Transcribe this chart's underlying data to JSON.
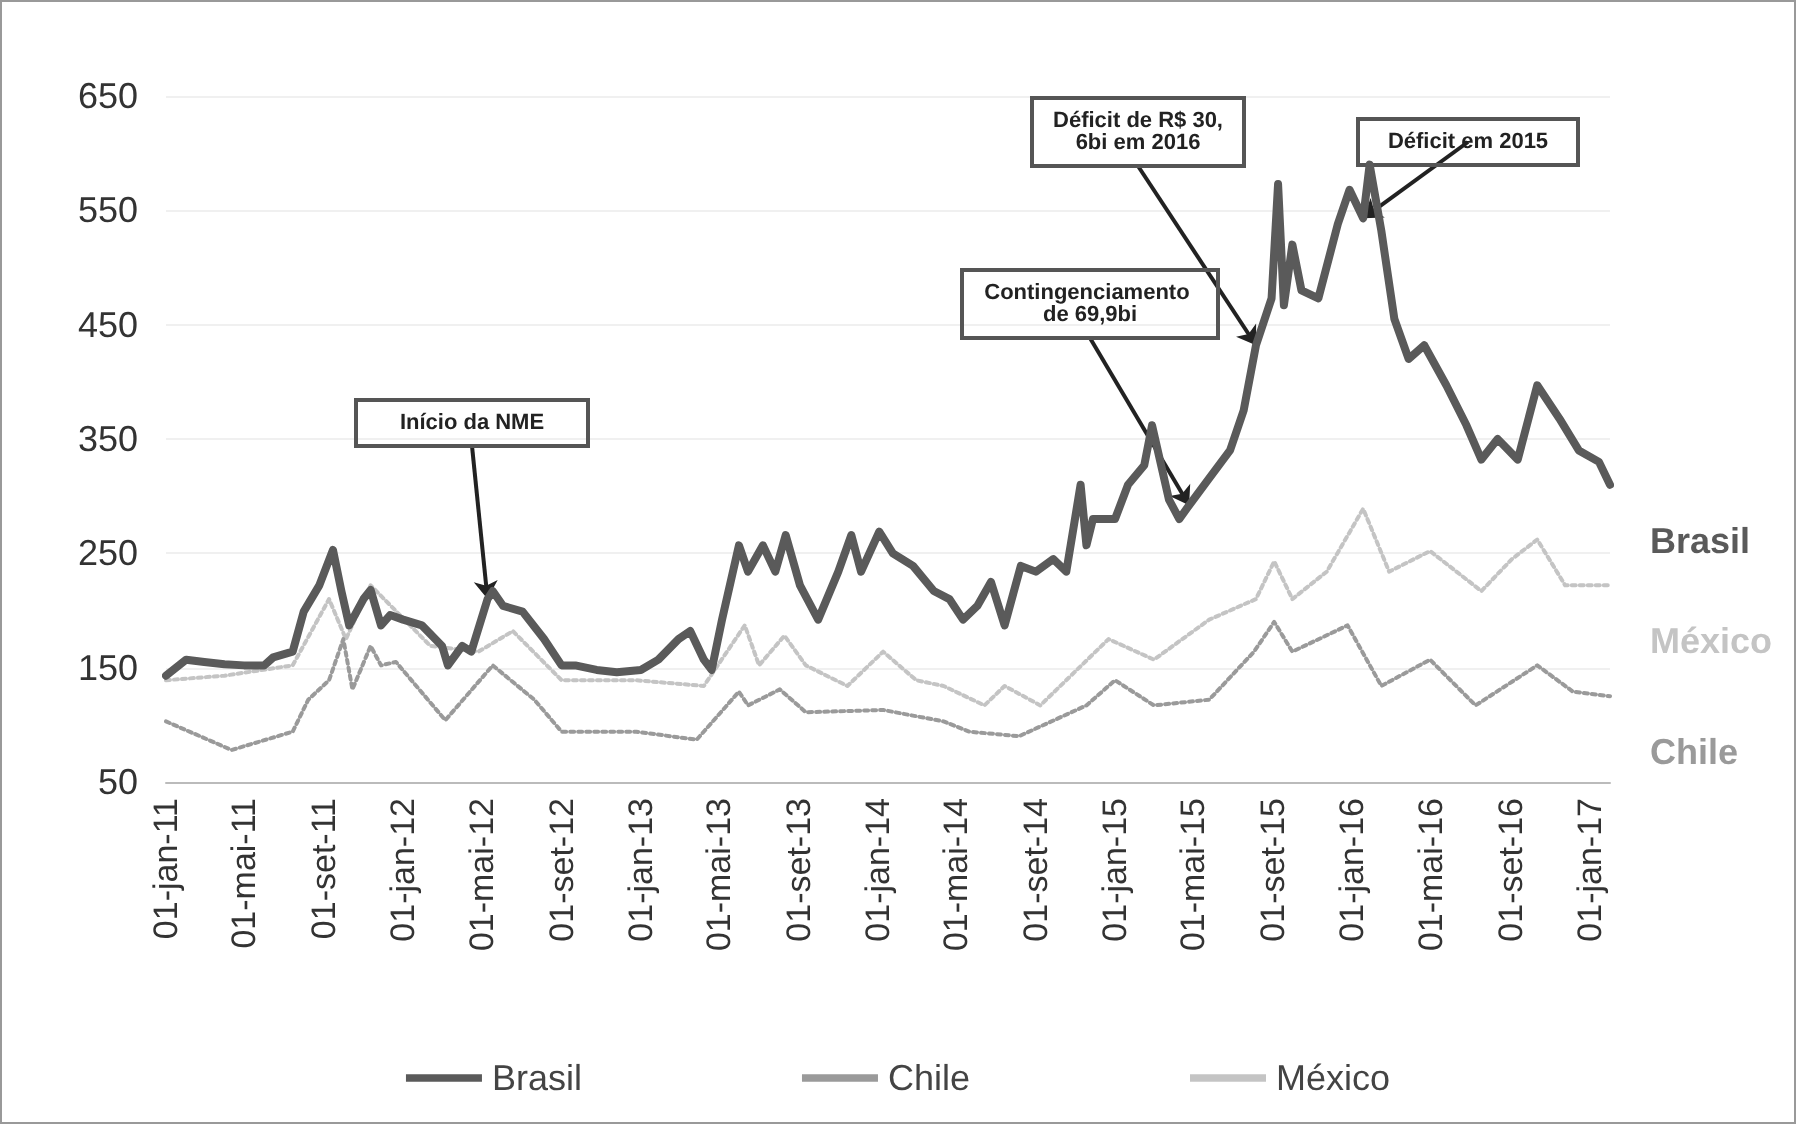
{
  "chart_data": {
    "type": "line",
    "ylim": [
      50,
      650
    ],
    "yticks": [
      50,
      150,
      250,
      350,
      450,
      550,
      650
    ],
    "xlim": [
      "2011-01-01",
      "2017-02-01"
    ],
    "xticks": [
      {
        "value": "2011-01-01",
        "label": "01-jan-11"
      },
      {
        "value": "2011-05-01",
        "label": "01-mai-11"
      },
      {
        "value": "2011-09-01",
        "label": "01-set-11"
      },
      {
        "value": "2012-01-01",
        "label": "01-jan-12"
      },
      {
        "value": "2012-05-01",
        "label": "01-mai-12"
      },
      {
        "value": "2012-09-01",
        "label": "01-set-12"
      },
      {
        "value": "2013-01-01",
        "label": "01-jan-13"
      },
      {
        "value": "2013-05-01",
        "label": "01-mai-13"
      },
      {
        "value": "2013-09-01",
        "label": "01-set-13"
      },
      {
        "value": "2014-01-01",
        "label": "01-jan-14"
      },
      {
        "value": "2014-05-01",
        "label": "01-mai-14"
      },
      {
        "value": "2014-09-01",
        "label": "01-set-14"
      },
      {
        "value": "2015-01-01",
        "label": "01-jan-15"
      },
      {
        "value": "2015-05-01",
        "label": "01-mai-15"
      },
      {
        "value": "2015-09-01",
        "label": "01-set-15"
      },
      {
        "value": "2016-01-01",
        "label": "01-jan-16"
      },
      {
        "value": "2016-05-01",
        "label": "01-mai-16"
      },
      {
        "value": "2016-09-01",
        "label": "01-set-16"
      },
      {
        "value": "2017-01-01",
        "label": "01-jan-17"
      }
    ],
    "grid": "y",
    "legend": "bottom",
    "marker": "none",
    "series": [
      {
        "name": "Brasil",
        "color": "#5a5a5a",
        "line_style": "solid",
        "x": [
          "2011-01-01",
          "2011-02-01",
          "2011-03-01",
          "2011-04-01",
          "2011-05-01",
          "2011-06-01",
          "2011-06-15",
          "2011-07-15",
          "2011-08-01",
          "2011-08-25",
          "2011-09-15",
          "2011-09-28",
          "2011-10-10",
          "2011-11-01",
          "2011-11-12",
          "2011-11-28",
          "2011-12-12",
          "2012-01-01",
          "2012-01-30",
          "2012-03-01",
          "2012-03-10",
          "2012-04-01",
          "2012-04-15",
          "2012-05-10",
          "2012-05-18",
          "2012-06-03",
          "2012-07-03",
          "2012-08-05",
          "2012-09-01",
          "2012-09-22",
          "2012-10-25",
          "2012-11-25",
          "2013-01-01",
          "2013-01-28",
          "2013-02-28",
          "2013-03-18",
          "2013-04-08",
          "2013-04-20",
          "2013-05-06",
          "2013-06-01",
          "2013-06-15",
          "2013-07-08",
          "2013-07-27",
          "2013-08-12",
          "2013-09-03",
          "2013-10-01",
          "2013-11-01",
          "2013-11-21",
          "2013-12-06",
          "2014-01-03",
          "2014-01-24",
          "2014-02-24",
          "2014-03-28",
          "2014-04-21",
          "2014-05-12",
          "2014-06-03",
          "2014-06-24",
          "2014-07-15",
          "2014-08-09",
          "2014-09-01",
          "2014-09-28",
          "2014-10-18",
          "2014-11-09",
          "2014-11-18",
          "2014-11-28",
          "2015-01-01",
          "2015-01-21",
          "2015-02-15",
          "2015-02-27",
          "2015-03-25",
          "2015-04-10",
          "2015-04-25",
          "2015-05-25",
          "2015-06-27",
          "2015-07-18",
          "2015-08-06",
          "2015-08-30",
          "2015-09-09",
          "2015-09-18",
          "2015-10-01",
          "2015-10-15",
          "2015-11-10",
          "2015-12-10",
          "2015-12-28",
          "2016-01-18",
          "2016-01-28",
          "2016-02-15",
          "2016-03-06",
          "2016-03-28",
          "2016-04-21",
          "2016-05-25",
          "2016-06-25",
          "2016-07-18",
          "2016-08-12",
          "2016-09-12",
          "2016-10-12",
          "2016-11-15",
          "2016-12-15",
          "2017-01-15",
          "2017-02-01"
        ],
        "values": [
          143,
          157,
          155,
          153,
          152,
          152,
          159,
          164,
          199,
          222,
          253,
          217,
          187,
          210,
          218,
          187,
          196,
          192,
          187,
          169,
          152,
          169,
          164,
          210,
          217,
          204,
          199,
          175,
          152,
          152,
          148,
          146,
          148,
          157,
          175,
          182,
          157,
          148,
          192,
          257,
          234,
          257,
          234,
          266,
          222,
          192,
          234,
          266,
          234,
          269,
          250,
          239,
          217,
          210,
          192,
          204,
          225,
          187,
          239,
          234,
          245,
          234,
          310,
          257,
          280,
          280,
          310,
          327,
          362,
          297,
          280,
          292,
          315,
          340,
          375,
          432,
          473,
          573,
          467,
          520,
          480,
          473,
          538,
          568,
          543,
          590,
          532,
          455,
          420,
          432,
          397,
          362,
          332,
          350,
          332,
          397,
          368,
          340,
          330,
          310
        ]
      },
      {
        "name": "Chile",
        "color": "#9a9a9a",
        "line_style": "dotted",
        "x": [
          "2011-01-01",
          "2011-04-12",
          "2011-07-15",
          "2011-08-08",
          "2011-09-09",
          "2011-10-01",
          "2011-10-15",
          "2011-11-12",
          "2011-11-28",
          "2011-12-21",
          "2012-03-06",
          "2012-05-18",
          "2012-07-21",
          "2012-09-01",
          "2012-12-25",
          "2013-03-28",
          "2013-06-01",
          "2013-06-15",
          "2013-08-03",
          "2013-09-12",
          "2014-01-09",
          "2014-04-12",
          "2014-05-22",
          "2014-08-06",
          "2014-11-18",
          "2015-01-01",
          "2015-03-02",
          "2015-05-26",
          "2015-08-03",
          "2015-09-03",
          "2015-10-01",
          "2015-12-25",
          "2016-02-15",
          "2016-04-30",
          "2016-07-09",
          "2016-10-12",
          "2016-12-06",
          "2017-02-01"
        ],
        "values": [
          103,
          78,
          94,
          122,
          139,
          175,
          131,
          169,
          152,
          155,
          104,
          152,
          122,
          94,
          94,
          87,
          129,
          117,
          131,
          111,
          113,
          103,
          94,
          90,
          117,
          139,
          117,
          122,
          164,
          190,
          164,
          187,
          134,
          157,
          117,
          152,
          129,
          125
        ]
      },
      {
        "name": "México",
        "color": "#c4c4c4",
        "line_style": "dotted",
        "x": [
          "2011-01-01",
          "2011-04-01",
          "2011-07-15",
          "2011-09-09",
          "2011-10-05",
          "2011-11-12",
          "2012-02-12",
          "2012-04-26",
          "2012-06-18",
          "2012-09-01",
          "2012-12-25",
          "2013-04-08",
          "2013-06-10",
          "2013-07-02",
          "2013-08-10",
          "2013-09-12",
          "2013-11-15",
          "2014-01-09",
          "2014-03-01",
          "2014-04-12",
          "2014-06-14",
          "2014-07-15",
          "2014-09-08",
          "2014-12-22",
          "2015-03-02",
          "2015-05-26",
          "2015-08-06",
          "2015-09-03",
          "2015-10-01",
          "2015-11-23",
          "2016-01-18",
          "2016-02-27",
          "2016-04-30",
          "2016-07-18",
          "2016-09-03",
          "2016-10-12",
          "2016-11-24",
          "2017-02-01"
        ],
        "values": [
          139,
          143,
          152,
          210,
          175,
          222,
          169,
          164,
          182,
          139,
          139,
          134,
          187,
          152,
          178,
          152,
          134,
          164,
          139,
          134,
          117,
          134,
          117,
          175,
          157,
          192,
          210,
          243,
          210,
          234,
          289,
          234,
          252,
          217,
          245,
          262,
          222,
          222
        ]
      }
    ],
    "annotations": [
      {
        "text": "Início da NME",
        "x": "2012-05-10",
        "y": 210
      },
      {
        "text": "Contingenciamento de 69,9bi",
        "x": "2015-04-25",
        "y": 292
      },
      {
        "text": "Déficit de R$ 30,6bi em 2016",
        "x": "2015-08-06",
        "y": 432
      },
      {
        "text": "Déficit em 2015",
        "x": "2016-01-18",
        "y": 543
      }
    ]
  }
}
